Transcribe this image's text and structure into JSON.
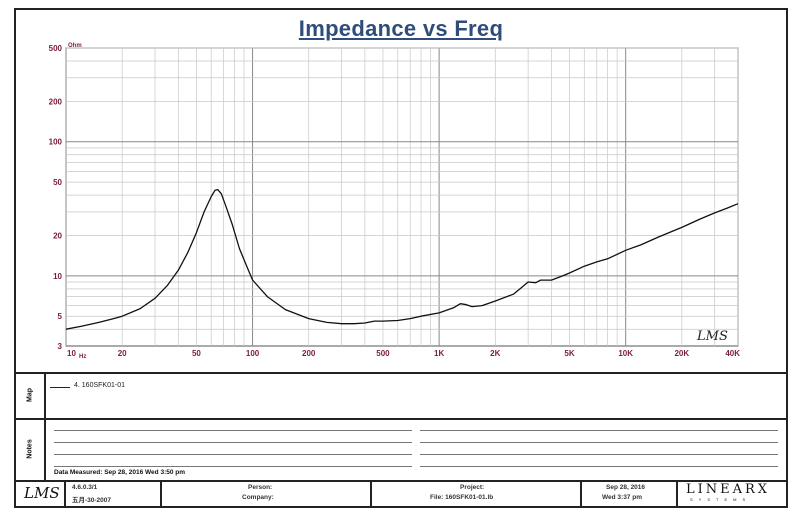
{
  "chart_data": {
    "type": "line",
    "title": "Impedance vs Freq",
    "y_unit": "Ohm",
    "x_unit": "Hz",
    "x_scale": "log",
    "y_scale": "log",
    "xlim": [
      10,
      40000
    ],
    "ylim": [
      3,
      500
    ],
    "grid": true,
    "y_ticks": [
      {
        "value": 500,
        "label": "500"
      },
      {
        "value": 200,
        "label": "200"
      },
      {
        "value": 100,
        "label": "100"
      },
      {
        "value": 50,
        "label": "50"
      },
      {
        "value": 20,
        "label": "20"
      },
      {
        "value": 10,
        "label": "10"
      },
      {
        "value": 5,
        "label": "5"
      },
      {
        "value": 3,
        "label": "3"
      }
    ],
    "x_ticks": [
      {
        "value": 10,
        "label": "10"
      },
      {
        "value": 20,
        "label": "20"
      },
      {
        "value": 50,
        "label": "50"
      },
      {
        "value": 100,
        "label": "100"
      },
      {
        "value": 200,
        "label": "200"
      },
      {
        "value": 500,
        "label": "500"
      },
      {
        "value": 1000,
        "label": "1K"
      },
      {
        "value": 2000,
        "label": "2K"
      },
      {
        "value": 5000,
        "label": "5K"
      },
      {
        "value": 10000,
        "label": "10K"
      },
      {
        "value": 20000,
        "label": "20K"
      },
      {
        "value": 40000,
        "label": "40K"
      }
    ],
    "series": [
      {
        "name": "4. 160SFK01-01",
        "color": "#111111",
        "points": [
          [
            10,
            4.0
          ],
          [
            12,
            4.2
          ],
          [
            15,
            4.5
          ],
          [
            18,
            4.8
          ],
          [
            20,
            5.0
          ],
          [
            25,
            5.7
          ],
          [
            30,
            6.8
          ],
          [
            35,
            8.5
          ],
          [
            40,
            11
          ],
          [
            45,
            15
          ],
          [
            50,
            21
          ],
          [
            55,
            30
          ],
          [
            60,
            39
          ],
          [
            63,
            43.5
          ],
          [
            65,
            44
          ],
          [
            68,
            41
          ],
          [
            72,
            33
          ],
          [
            78,
            24
          ],
          [
            85,
            16
          ],
          [
            95,
            11
          ],
          [
            100,
            9.3
          ],
          [
            120,
            7.0
          ],
          [
            150,
            5.6
          ],
          [
            200,
            4.8
          ],
          [
            250,
            4.5
          ],
          [
            300,
            4.4
          ],
          [
            350,
            4.4
          ],
          [
            400,
            4.45
          ],
          [
            450,
            4.6
          ],
          [
            500,
            4.6
          ],
          [
            600,
            4.65
          ],
          [
            700,
            4.8
          ],
          [
            800,
            5.0
          ],
          [
            1000,
            5.3
          ],
          [
            1200,
            5.8
          ],
          [
            1300,
            6.2
          ],
          [
            1400,
            6.1
          ],
          [
            1500,
            5.9
          ],
          [
            1700,
            6.0
          ],
          [
            2000,
            6.5
          ],
          [
            2500,
            7.3
          ],
          [
            2800,
            8.3
          ],
          [
            3000,
            9.0
          ],
          [
            3300,
            8.9
          ],
          [
            3500,
            9.3
          ],
          [
            4000,
            9.3
          ],
          [
            4500,
            9.9
          ],
          [
            5000,
            10.5
          ],
          [
            6000,
            11.8
          ],
          [
            7000,
            12.7
          ],
          [
            8000,
            13.4
          ],
          [
            10000,
            15.5
          ],
          [
            12000,
            17.0
          ],
          [
            15000,
            19.5
          ],
          [
            20000,
            23.0
          ],
          [
            25000,
            26.5
          ],
          [
            30000,
            29.5
          ],
          [
            35000,
            32.0
          ],
          [
            40000,
            34.5
          ]
        ]
      }
    ]
  },
  "watermark": "LMS",
  "panels": {
    "map_label": "Map",
    "notes_label": "Notes",
    "legend_entry": "4. 160SFK01-01",
    "measured_text": "Data Measured: Sep 28, 2016 Wed 3:50 pm"
  },
  "footer": {
    "logo": "LMS",
    "version": "4.6.0.3/1",
    "version_date": "五月-30-2007",
    "person_label": "Person:",
    "company_label": "Company:",
    "project_label": "Project:",
    "file_label": "File: 160SFK01-01.lb",
    "date": "Sep 28, 2016",
    "day_time": "Wed 3:37 pm",
    "brand": "LINEARX",
    "brand_sub": "SYSTEMS"
  }
}
